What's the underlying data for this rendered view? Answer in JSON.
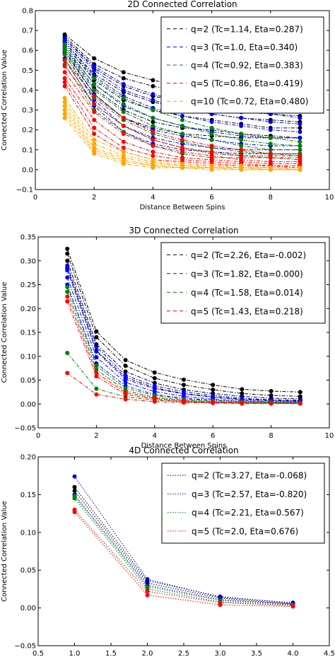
{
  "chart_data": [
    {
      "type": "line",
      "title": "2D Connected Correlation",
      "xlabel": "Distance Between Spins",
      "ylabel": "Connected Correlation Value",
      "xlim": [
        0,
        10
      ],
      "ylim": [
        -0.1,
        0.8
      ],
      "xticks": [
        "0",
        "2",
        "4",
        "6",
        "8",
        "10"
      ],
      "yticks": [
        "−0.1",
        "0.0",
        "0.1",
        "0.2",
        "0.3",
        "0.4",
        "0.5",
        "0.6",
        "0.7",
        "0.8"
      ],
      "line_style": "dashdot",
      "legend_location": "top-right",
      "legend_line_style": "dashed",
      "legend": [
        "q=2 (Tc=1.14, Eta=0.287)",
        "q=3 (Tc=1.0, Eta=0.340)",
        "q=4 (Tc=0.92, Eta=0.383)",
        "q=5 (Tc=0.86, Eta=0.419)",
        "q=10 (Tc=0.72, Eta=0.480)"
      ],
      "series": [
        {
          "color": "#000000",
          "x": [
            1,
            2,
            3,
            4,
            5,
            6,
            7,
            8,
            9
          ],
          "curves": [
            [
              0.68,
              0.56,
              0.49,
              0.45,
              0.42,
              0.4,
              0.38,
              0.35,
              0.33
            ],
            [
              0.67,
              0.53,
              0.46,
              0.42,
              0.39,
              0.37,
              0.35,
              0.33,
              0.31
            ],
            [
              0.66,
              0.51,
              0.42,
              0.37,
              0.34,
              0.31,
              0.29,
              0.28,
              0.27
            ],
            [
              0.64,
              0.48,
              0.39,
              0.34,
              0.31,
              0.28,
              0.26,
              0.25,
              0.24
            ],
            [
              0.63,
              0.45,
              0.35,
              0.3,
              0.27,
              0.25,
              0.23,
              0.21,
              0.21
            ],
            [
              0.61,
              0.41,
              0.3,
              0.24,
              0.21,
              0.2,
              0.18,
              0.17,
              0.16
            ],
            [
              0.59,
              0.38,
              0.26,
              0.21,
              0.18,
              0.17,
              0.16,
              0.16,
              0.16
            ]
          ]
        },
        {
          "color": "#0000ff",
          "x": [
            1,
            2,
            3,
            4,
            5,
            6,
            7,
            8,
            9
          ],
          "curves": [
            [
              0.66,
              0.52,
              0.43,
              0.38,
              0.34,
              0.32,
              0.3,
              0.28,
              0.26
            ],
            [
              0.65,
              0.5,
              0.4,
              0.35,
              0.31,
              0.28,
              0.26,
              0.24,
              0.23
            ],
            [
              0.64,
              0.47,
              0.37,
              0.31,
              0.27,
              0.24,
              0.22,
              0.2,
              0.19
            ],
            [
              0.62,
              0.43,
              0.32,
              0.26,
              0.22,
              0.19,
              0.17,
              0.16,
              0.16
            ],
            [
              0.6,
              0.38,
              0.26,
              0.2,
              0.17,
              0.15,
              0.13,
              0.12,
              0.12
            ],
            [
              0.58,
              0.35,
              0.22,
              0.16,
              0.13,
              0.11,
              0.1,
              0.1,
              0.1
            ],
            [
              0.56,
              0.32,
              0.19,
              0.13,
              0.1,
              0.09,
              0.08,
              0.08,
              0.08
            ]
          ]
        },
        {
          "color": "#008000",
          "x": [
            1,
            2,
            3,
            4,
            5,
            6,
            7,
            8,
            9
          ],
          "curves": [
            [
              0.63,
              0.46,
              0.36,
              0.3,
              0.25,
              0.21,
              0.18,
              0.16,
              0.14
            ],
            [
              0.61,
              0.43,
              0.33,
              0.26,
              0.22,
              0.18,
              0.15,
              0.13,
              0.12
            ],
            [
              0.6,
              0.4,
              0.29,
              0.22,
              0.18,
              0.15,
              0.12,
              0.1,
              0.1
            ],
            [
              0.58,
              0.36,
              0.25,
              0.18,
              0.14,
              0.11,
              0.09,
              0.08,
              0.08
            ],
            [
              0.55,
              0.33,
              0.22,
              0.15,
              0.11,
              0.08,
              0.07,
              0.07,
              0.07
            ],
            [
              0.53,
              0.3,
              0.19,
              0.12,
              0.08,
              0.06,
              0.06,
              0.06,
              0.06
            ]
          ]
        },
        {
          "color": "#ff0000",
          "x": [
            1,
            2,
            3,
            4,
            5,
            6,
            7,
            8,
            9
          ],
          "curves": [
            [
              0.55,
              0.37,
              0.26,
              0.19,
              0.15,
              0.12,
              0.1,
              0.08,
              0.07
            ],
            [
              0.52,
              0.33,
              0.22,
              0.15,
              0.11,
              0.09,
              0.07,
              0.06,
              0.05
            ],
            [
              0.49,
              0.29,
              0.18,
              0.12,
              0.09,
              0.07,
              0.05,
              0.04,
              0.04
            ],
            [
              0.46,
              0.25,
              0.14,
              0.09,
              0.06,
              0.05,
              0.04,
              0.03,
              0.03
            ],
            [
              0.44,
              0.21,
              0.11,
              0.07,
              0.05,
              0.04,
              0.03,
              0.02,
              0.02
            ],
            [
              0.42,
              0.18,
              0.09,
              0.05,
              0.04,
              0.03,
              0.02,
              0.02,
              0.01
            ]
          ]
        },
        {
          "color": "#ffa500",
          "x": [
            1,
            2,
            3,
            4,
            5,
            6,
            7,
            8,
            9
          ],
          "curves": [
            [
              0.36,
              0.15,
              0.09,
              0.05,
              0.03,
              0.02,
              0.02,
              0.01,
              0.01
            ],
            [
              0.34,
              0.13,
              0.07,
              0.04,
              0.02,
              0.02,
              0.01,
              0.01,
              0.01
            ],
            [
              0.32,
              0.11,
              0.06,
              0.03,
              0.02,
              0.01,
              0.01,
              0.01,
              0.0
            ],
            [
              0.3,
              0.1,
              0.05,
              0.02,
              0.01,
              0.01,
              0.01,
              0.0,
              0.0
            ],
            [
              0.28,
              0.09,
              0.04,
              0.02,
              0.01,
              0.01,
              0.0,
              0.0,
              0.0
            ],
            [
              0.26,
              0.08,
              0.03,
              0.01,
              0.01,
              0.0,
              0.0,
              0.0,
              0.0
            ]
          ]
        }
      ]
    },
    {
      "type": "line",
      "title": "3D Connected Correlation",
      "xlabel": "Distance Between Spins",
      "ylabel": "Connected Correlation Value",
      "xlim": [
        0,
        10
      ],
      "ylim": [
        -0.05,
        0.35
      ],
      "xticks": [
        "0",
        "2",
        "4",
        "6",
        "8",
        "10"
      ],
      "yticks": [
        "−0.05",
        "0.00",
        "0.05",
        "0.10",
        "0.15",
        "0.20",
        "0.25",
        "0.30",
        "0.35"
      ],
      "line_style": "dashdot",
      "legend_location": "top-right",
      "legend_line_style": "dashed",
      "legend": [
        "q=2 (Tc=2.26, Eta=-0.002)",
        "q=3 (Tc=1.82, Eta=0.000)",
        "q=4 (Tc=1.58, Eta=0.014)",
        "q=5 (Tc=1.43, Eta=0.218)"
      ],
      "series": [
        {
          "color": "#000000",
          "x": [
            1,
            2,
            3,
            4,
            5,
            6,
            7,
            8,
            9
          ],
          "curves": [
            [
              0.325,
              0.152,
              0.092,
              0.066,
              0.051,
              0.04,
              0.031,
              0.027,
              0.025
            ],
            [
              0.315,
              0.14,
              0.08,
              0.054,
              0.04,
              0.03,
              0.022,
              0.018,
              0.016
            ],
            [
              0.3,
              0.125,
              0.068,
              0.044,
              0.03,
              0.022,
              0.016,
              0.012,
              0.011
            ],
            [
              0.285,
              0.112,
              0.056,
              0.034,
              0.022,
              0.015,
              0.01,
              0.008,
              0.007
            ]
          ]
        },
        {
          "color": "#0000ff",
          "x": [
            1,
            2,
            3,
            4,
            5,
            6,
            7,
            8,
            9
          ],
          "curves": [
            [
              0.29,
              0.12,
              0.06,
              0.038,
              0.026,
              0.018,
              0.012,
              0.009,
              0.008
            ],
            [
              0.28,
              0.11,
              0.052,
              0.032,
              0.021,
              0.014,
              0.009,
              0.007,
              0.006
            ],
            [
              0.265,
              0.098,
              0.045,
              0.026,
              0.016,
              0.01,
              0.007,
              0.005,
              0.005
            ],
            [
              0.25,
              0.085,
              0.038,
              0.02,
              0.012,
              0.008,
              0.005,
              0.004,
              0.004
            ]
          ]
        },
        {
          "color": "#008000",
          "x": [
            1,
            2,
            3,
            4,
            5,
            6,
            7,
            8,
            9
          ],
          "curves": [
            [
              0.245,
              0.08,
              0.033,
              0.018,
              0.01,
              0.007,
              0.005,
              0.004,
              0.003
            ],
            [
              0.235,
              0.072,
              0.028,
              0.014,
              0.008,
              0.005,
              0.004,
              0.003,
              0.002
            ],
            [
              0.107,
              0.032,
              0.015,
              0.008,
              0.005,
              0.003,
              0.002,
              0.002,
              0.001
            ]
          ]
        },
        {
          "color": "#ff0000",
          "x": [
            1,
            2,
            3,
            4,
            5,
            6,
            7,
            8,
            9
          ],
          "curves": [
            [
              0.225,
              0.065,
              0.024,
              0.012,
              0.007,
              0.004,
              0.003,
              0.002,
              0.002
            ],
            [
              0.215,
              0.058,
              0.02,
              0.01,
              0.005,
              0.003,
              0.002,
              0.001,
              0.001
            ],
            [
              0.065,
              0.02,
              0.01,
              0.005,
              0.003,
              0.002,
              0.001,
              0.001,
              0.001
            ]
          ]
        }
      ]
    },
    {
      "type": "line",
      "title": "4D Connected Correlation",
      "xlabel": "Distance Between Spins",
      "ylabel": "Connected Correlation Value",
      "xlim": [
        0.5,
        4.5
      ],
      "ylim": [
        -0.05,
        0.2
      ],
      "xticks": [
        "0.5",
        "1.0",
        "1.5",
        "2.0",
        "2.5",
        "3.0",
        "3.5",
        "4.0",
        "4.5"
      ],
      "yticks": [
        "−0.05",
        "0.00",
        "0.05",
        "0.10",
        "0.15",
        "0.20"
      ],
      "line_style": "dotted",
      "legend_location": "top-right",
      "legend_line_style": "dotted",
      "legend": [
        "q=2 (Tc=3.27, Eta=-0.068)",
        "q=3 (Tc=2.57, Eta=-0.820)",
        "q=4 (Tc=2.21, Eta=0.567)",
        "q=5 (Tc=2.0, Eta=0.676)"
      ],
      "series": [
        {
          "color": "#000000",
          "x": [
            1,
            2,
            3,
            4
          ],
          "curves": [
            [
              0.16,
              0.036,
              0.015,
              0.006
            ],
            [
              0.155,
              0.033,
              0.013,
              0.005
            ]
          ]
        },
        {
          "color": "#0000ff",
          "x": [
            1,
            2,
            3,
            4
          ],
          "curves": [
            [
              0.174,
              0.038,
              0.014,
              0.007
            ],
            [
              0.15,
              0.03,
              0.011,
              0.005
            ]
          ]
        },
        {
          "color": "#008000",
          "x": [
            1,
            2,
            3,
            4
          ],
          "curves": [
            [
              0.148,
              0.028,
              0.01,
              0.004
            ],
            [
              0.145,
              0.025,
              0.008,
              0.003
            ]
          ]
        },
        {
          "color": "#ff0000",
          "x": [
            1,
            2,
            3,
            4
          ],
          "curves": [
            [
              0.13,
              0.022,
              0.007,
              0.003
            ],
            [
              0.127,
              0.017,
              0.004,
              0.002
            ]
          ]
        }
      ]
    }
  ]
}
